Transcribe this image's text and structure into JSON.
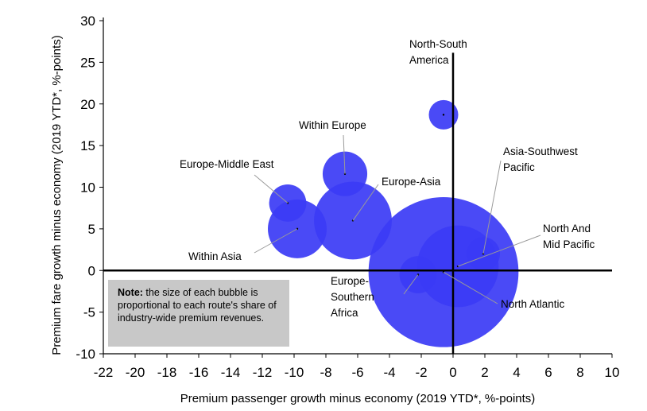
{
  "chart_data": {
    "type": "scatter",
    "subtype": "bubble",
    "xlabel": "Premium passenger growth minus economy (2019 YTD*, %-points)",
    "ylabel": "Premium fare growth minus economy (2019 YTD*, %-points)",
    "xlim": [
      -22,
      10
    ],
    "ylim": [
      -10,
      30
    ],
    "xticks": [
      "-22",
      "-20",
      "-18",
      "-16",
      "-14",
      "-12",
      "-10",
      "-8",
      "-6",
      "-4",
      "-2",
      "0",
      "2",
      "4",
      "6",
      "8",
      "10"
    ],
    "yticks": [
      "30",
      "25",
      "20",
      "15",
      "10",
      "5",
      "0",
      "-5",
      "-10"
    ],
    "grid": false,
    "bubble_color": "#3b3bf5",
    "series": [
      {
        "label": [
          "North-South",
          "America"
        ],
        "x": -0.6,
        "y": 18.7,
        "size": 1.0
      },
      {
        "label": [
          "Within Europe"
        ],
        "x": -6.8,
        "y": 11.6,
        "size": 2.3
      },
      {
        "label": [
          "Europe-Middle East"
        ],
        "x": -10.4,
        "y": 8.1,
        "size": 1.6
      },
      {
        "label": [
          "Europe-Asia"
        ],
        "x": -6.3,
        "y": 6.0,
        "size": 7.0
      },
      {
        "label": [
          "Within Asia"
        ],
        "x": -9.8,
        "y": 5.0,
        "size": 4.0
      },
      {
        "label": [
          "Asia-Southwest",
          "Pacific"
        ],
        "x": 1.9,
        "y": 2.0,
        "size": 1.3
      },
      {
        "label": [
          "North And",
          "Mid Pacific"
        ],
        "x": 0.3,
        "y": 0.5,
        "size": 7.7
      },
      {
        "label": [
          "Europe-",
          "Southern",
          "Africa"
        ],
        "x": -2.2,
        "y": -0.5,
        "size": 1.6
      },
      {
        "label": [
          "North Atlantic"
        ],
        "x": -0.6,
        "y": -0.2,
        "size": 26.0
      }
    ]
  },
  "note": {
    "bold": "Note:",
    "text": " the size of each bubble is proportional to each route's share of industry-wide premium revenues."
  }
}
